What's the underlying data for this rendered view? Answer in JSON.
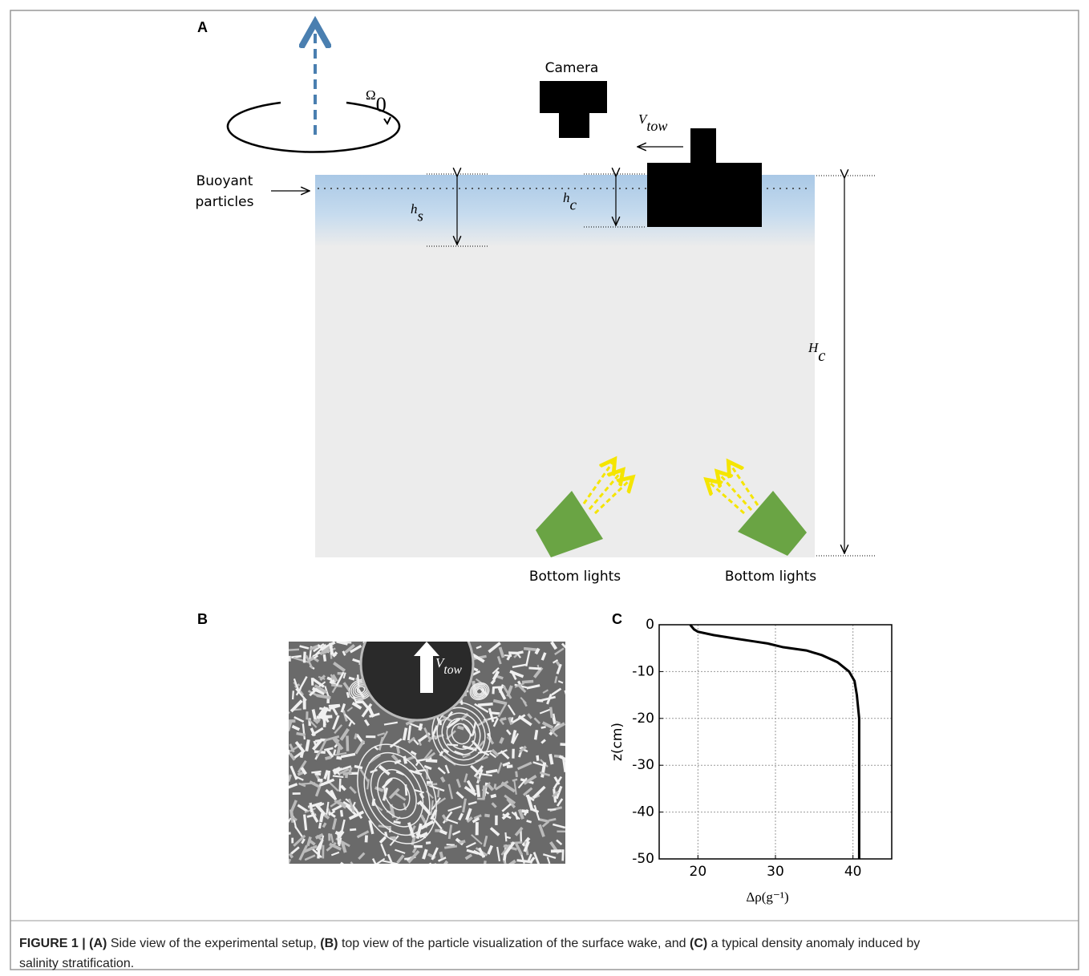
{
  "panel_a": {
    "label": "A",
    "omega": {
      "symbol": "Ω",
      "subscript": "0"
    },
    "camera": "Camera",
    "v_tow": {
      "symbol": "V",
      "subscript": "tow"
    },
    "buoyant": [
      "Buoyant",
      "particles"
    ],
    "h_s": {
      "symbol": "h",
      "subscript": "s"
    },
    "h_c": {
      "symbol": "h",
      "subscript": "c"
    },
    "H_c": {
      "symbol": "H",
      "subscript": "c"
    },
    "lights": [
      "Bottom lights",
      "Bottom lights"
    ]
  },
  "panel_b": {
    "label": "B",
    "v_tow": {
      "symbol": "V",
      "subscript": "tow"
    }
  },
  "panel_c": {
    "label": "C"
  },
  "chart_data": {
    "type": "line",
    "xlabel": "Δρ(g⁻¹)",
    "ylabel": "z(cm)",
    "x": [
      19,
      19.5,
      20,
      22,
      25,
      27,
      29,
      31,
      34,
      36,
      38,
      39.5,
      40.2,
      40.5,
      40.8,
      40.8,
      40.8,
      40.8
    ],
    "values": [
      0,
      -1,
      -1.5,
      -2.2,
      -3,
      -3.5,
      -4,
      -4.8,
      -5.5,
      -6.5,
      -8,
      -10,
      -12,
      -15,
      -20,
      -30,
      -40,
      -50
    ],
    "color": "#000000",
    "xlim": [
      15,
      45
    ],
    "ylim": [
      -50,
      0
    ],
    "xticks": [
      20,
      30,
      40
    ],
    "yticks": [
      0,
      -10,
      -20,
      -30,
      -40,
      -50
    ],
    "grid": true
  },
  "caption": {
    "lines": [
      [
        {
          "text": "FIGURE 1 | (A)",
          "bold": true
        },
        {
          "text": " Side view of the experimental setup, ",
          "bold": false
        },
        {
          "text": "(B)",
          "bold": true
        },
        {
          "text": " top view of the particle visualization of the surface wake, and ",
          "bold": false
        },
        {
          "text": "(C)",
          "bold": true
        },
        {
          "text": " a typical density anomaly induced by",
          "bold": false
        }
      ],
      [
        {
          "text": "salinity stratification.",
          "bold": false
        }
      ]
    ]
  }
}
